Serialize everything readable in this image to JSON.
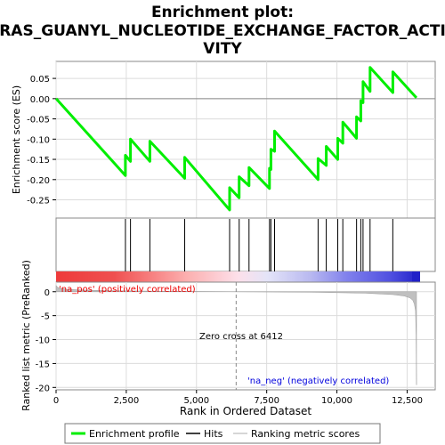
{
  "chart_data": {
    "type": "line",
    "title_lines": [
      "Enrichment plot:",
      "RAS_GUANYL_NUCLEOTIDE_EXCHANGE_FACTOR_ACTI",
      "VITY"
    ],
    "xlabel": "Rank in Ordered Dataset",
    "xlim": [
      0,
      13500
    ],
    "x_ticks": [
      0,
      2500,
      5000,
      7500,
      10000,
      12500
    ],
    "x_tick_labels": [
      "0",
      "2,500",
      "5,000",
      "7,500",
      "10,000",
      "12,500"
    ],
    "top_panel": {
      "ylabel": "Enrichment score (ES)",
      "ylim": [
        -0.295,
        0.092
      ],
      "y_ticks": [
        0.05,
        0.0,
        -0.05,
        -0.1,
        -0.15,
        -0.2,
        -0.25
      ],
      "y_tick_labels": [
        "0.05",
        "0.00",
        "-0.05",
        "-0.10",
        "-0.15",
        "-0.20",
        "-0.25"
      ],
      "series": [
        {
          "name": "Enrichment profile",
          "color": "#00ee00",
          "x": [
            0,
            2470,
            2470,
            2650,
            2650,
            3340,
            3340,
            4580,
            4580,
            6180,
            6180,
            6520,
            6520,
            6870,
            6870,
            7600,
            7600,
            7650,
            7650,
            7780,
            7780,
            9330,
            9330,
            9620,
            9620,
            10030,
            10030,
            10210,
            10210,
            10700,
            10700,
            10850,
            10850,
            10930,
            10930,
            11180,
            11180,
            11990,
            11990,
            12830
          ],
          "y": [
            0.0,
            -0.19,
            -0.14,
            -0.155,
            -0.1,
            -0.155,
            -0.105,
            -0.197,
            -0.145,
            -0.275,
            -0.22,
            -0.245,
            -0.193,
            -0.215,
            -0.17,
            -0.222,
            -0.172,
            -0.175,
            -0.125,
            -0.13,
            -0.08,
            -0.2,
            -0.148,
            -0.165,
            -0.118,
            -0.15,
            -0.098,
            -0.11,
            -0.058,
            -0.098,
            -0.045,
            -0.055,
            -0.005,
            -0.01,
            0.042,
            0.018,
            0.077,
            0.015,
            0.066,
            0.002
          ]
        }
      ]
    },
    "hits": [
      2470,
      2650,
      3340,
      4580,
      6180,
      6520,
      6870,
      7600,
      7650,
      7780,
      9330,
      9620,
      10030,
      10210,
      10700,
      10850,
      10930,
      11180,
      11990
    ],
    "bottom_panel": {
      "ylabel": "Ranked list metric (PreRanked)",
      "ylim": [
        -20.5,
        2.0
      ],
      "y_ticks": [
        0,
        -5,
        -10,
        -15,
        -20
      ],
      "y_tick_labels": [
        "0",
        "-5",
        "-10",
        "-15",
        "-20"
      ],
      "metric_profile": {
        "x": [
          0,
          60,
          150,
          400,
          1000,
          2000,
          4000,
          6412,
          9000,
          11000,
          12000,
          12400,
          12600,
          12700,
          12760,
          12800,
          12820,
          12835
        ],
        "y": [
          1.3,
          0.9,
          0.7,
          0.5,
          0.35,
          0.2,
          0.08,
          0.0,
          -0.1,
          -0.3,
          -0.6,
          -0.9,
          -1.3,
          -1.8,
          -2.6,
          -4.0,
          -9.0,
          -19.5
        ]
      },
      "zero_cross_rank": 6412,
      "annotations": {
        "pos_label": "'na_pos' (positively correlated)",
        "neg_label": "'na_neg' (negatively correlated)",
        "zero_cross_label": "Zero cross at 6412"
      }
    },
    "legend": {
      "placement": "bottom",
      "entries": [
        {
          "label": "Enrichment profile",
          "color": "#00ee00"
        },
        {
          "label": "Hits",
          "color": "#000000"
        },
        {
          "label": "Ranking metric scores",
          "color": "#c8c8c8"
        }
      ]
    },
    "colors": {
      "pos": "#ff0000",
      "neg": "#0000ff",
      "metric_fill": "#c0c0c0",
      "grid": "#dcdcdc"
    }
  }
}
